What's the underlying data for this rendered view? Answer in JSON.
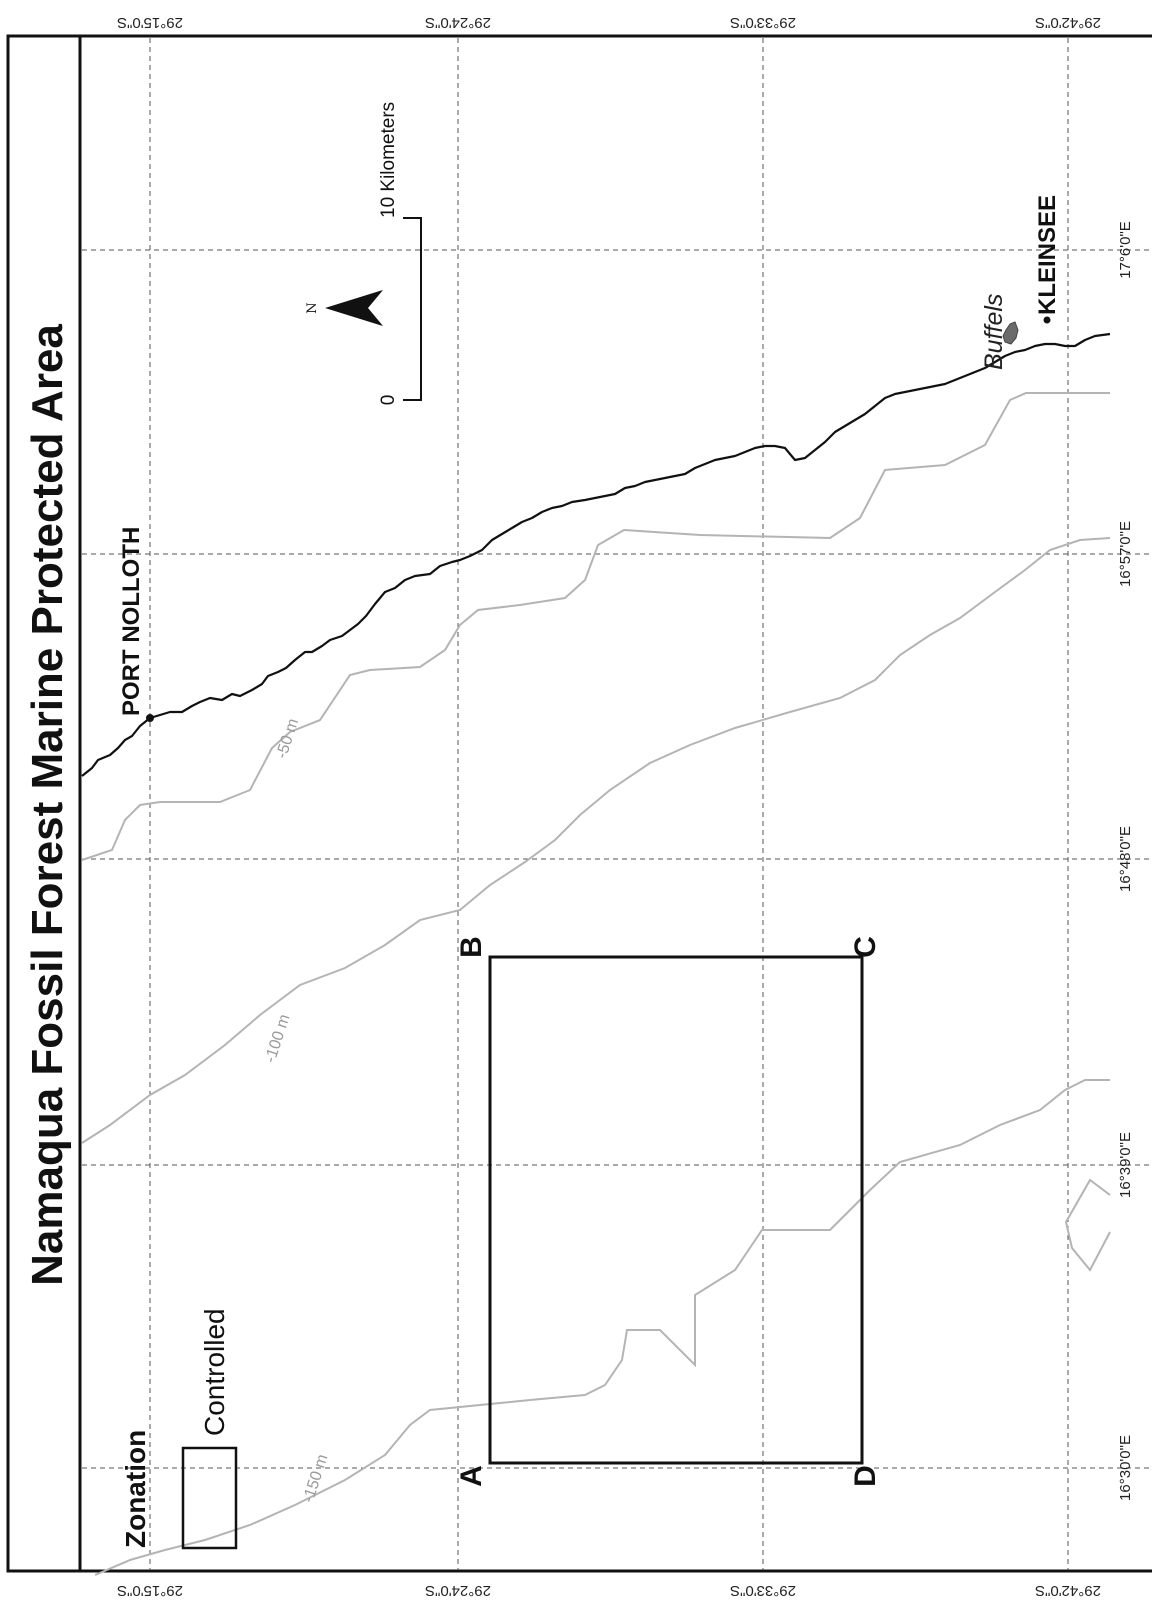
{
  "title": "Namaqua Fossil Forest Marine Protected Area",
  "latitude_labels": [
    "29°15'0\"S",
    "29°24'0\"S",
    "29°33'0\"S",
    "29°42'0\"S"
  ],
  "longitude_labels": [
    "16°30'0\"E",
    "16°39'0\"E",
    "16°48'0\"E",
    "16°57'0\"E",
    "17°6'0\"E"
  ],
  "places": {
    "port_nolloth": "PORT NOLLOTH",
    "kleinsee": "KLEINSEE",
    "river": "Buffels"
  },
  "contours": {
    "c50": "-50 m",
    "c100": "-100 m",
    "c150": "-150 m"
  },
  "zone_corners": {
    "a": "A",
    "b": "B",
    "c": "C",
    "d": "D"
  },
  "scale": {
    "start": "0",
    "end": "10 Kilometers"
  },
  "north": "N",
  "legend": {
    "title": "Zonation",
    "item": "Controlled"
  },
  "colors": {
    "coastline": "#111111",
    "contour": "#b4b4b4",
    "zone_outline": "#111111",
    "graticule": "#555555"
  }
}
